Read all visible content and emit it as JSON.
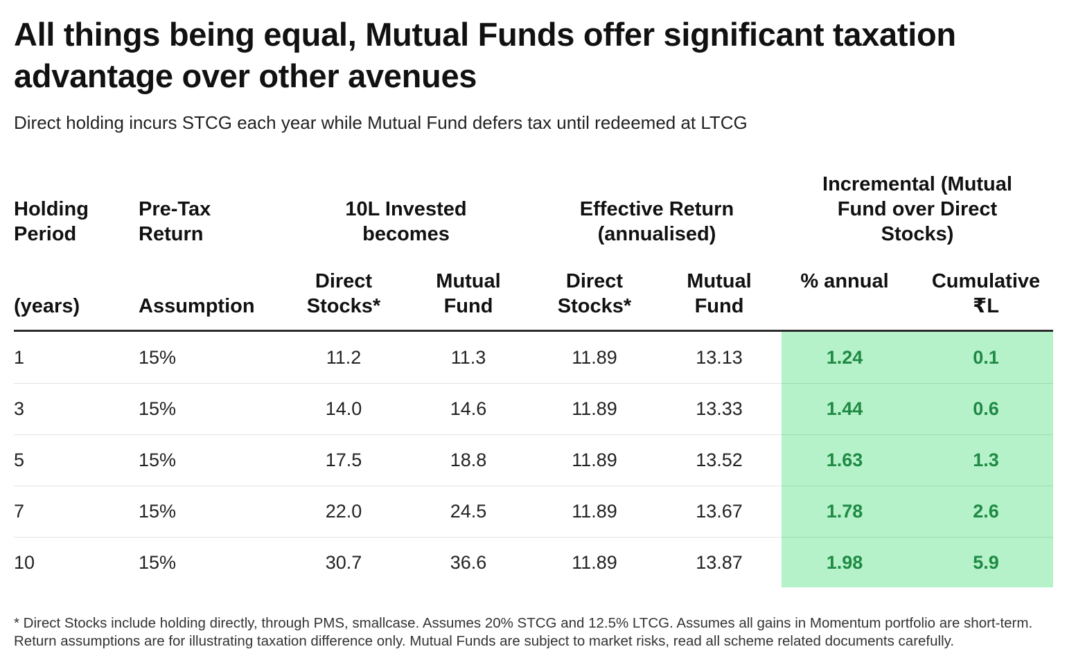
{
  "title": "All things being equal, Mutual Funds offer significant taxation advantage over other avenues",
  "subtitle": "Direct holding incurs STCG each year while Mutual Fund defers tax until redeemed at LTCG",
  "header": {
    "holding_period": "Holding Period",
    "years": "(years)",
    "pre_tax_return": "Pre-Tax Return",
    "assumption": "Assumption",
    "invested_becomes": "10L Invested becomes",
    "effective_return": "Effective Return (annualised)",
    "incremental": "Incremental (Mutual Fund over Direct Stocks)",
    "direct_stocks": "Direct Stocks*",
    "mutual_fund": "Mutual Fund",
    "pct_annual": "% annual",
    "cumulative": "Cumulative ₹L"
  },
  "colors": {
    "highlight_bg": "#b6f2c9",
    "highlight_text": "#1f8a45",
    "rule": "#2b2b2b"
  },
  "chart_data": {
    "type": "table",
    "columns": [
      "Holding Period (years)",
      "Pre-Tax Return Assumption",
      "10L Invested becomes — Direct Stocks*",
      "10L Invested becomes — Mutual Fund",
      "Effective Return (annualised) — Direct Stocks*",
      "Effective Return (annualised) — Mutual Fund",
      "Incremental — % annual",
      "Incremental — Cumulative ₹L"
    ],
    "rows": [
      [
        "1",
        "15%",
        "11.2",
        "11.3",
        "11.89",
        "13.13",
        "1.24",
        "0.1"
      ],
      [
        "3",
        "15%",
        "14.0",
        "14.6",
        "11.89",
        "13.33",
        "1.44",
        "0.6"
      ],
      [
        "5",
        "15%",
        "17.5",
        "18.8",
        "11.89",
        "13.52",
        "1.63",
        "1.3"
      ],
      [
        "7",
        "15%",
        "22.0",
        "24.5",
        "11.89",
        "13.67",
        "1.78",
        "2.6"
      ],
      [
        "10",
        "15%",
        "30.7",
        "36.6",
        "11.89",
        "13.87",
        "1.98",
        "5.9"
      ]
    ]
  },
  "footnote": "* Direct Stocks include holding directly, through PMS, smallcase. Assumes 20% STCG and 12.5% LTCG. Assumes all gains in Momentum portfolio are short-term. Return assumptions are for illustrating taxation difference only. Mutual Funds are subject to market risks, read all scheme related documents carefully."
}
